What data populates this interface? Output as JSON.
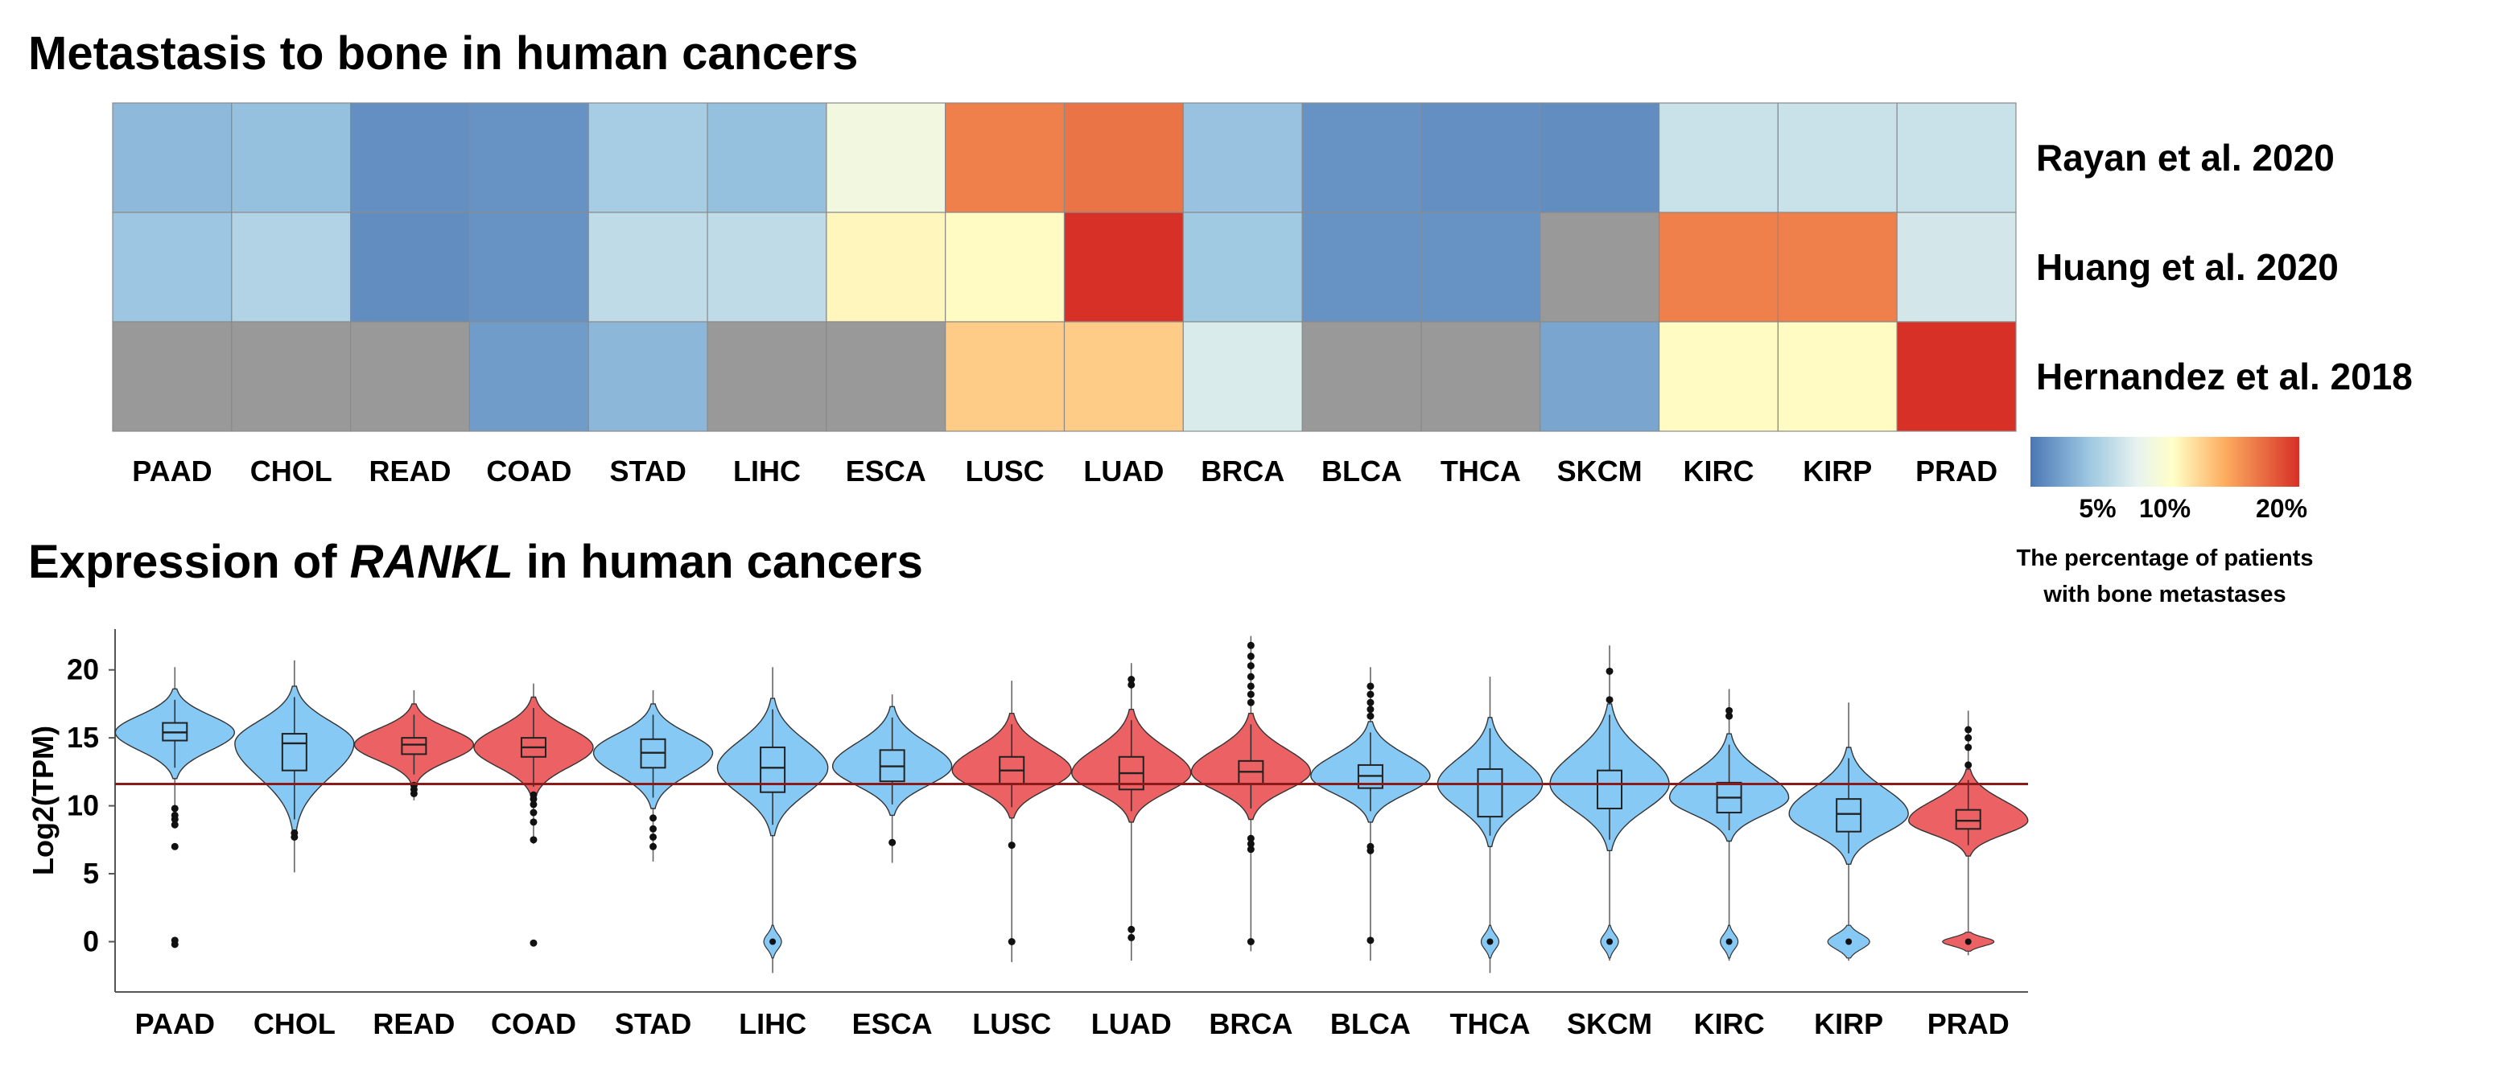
{
  "colors": {
    "low": "#4a77b5",
    "mid": "#ffffc8",
    "high": "#d73027",
    "na": "#999999",
    "violin_blue": "#87c9f5",
    "violin_red": "#ec6163",
    "ref_line": "#8b1a1a"
  },
  "chart_data": [
    {
      "type": "heatmap",
      "title": "Metastasis to bone in human cancers",
      "categories": [
        "PAAD",
        "CHOL",
        "READ",
        "COAD",
        "STAD",
        "LIHC",
        "ESCA",
        "LUSC",
        "LUAD",
        "BRCA",
        "BLCA",
        "THCA",
        "SKCM",
        "KIRC",
        "KIRP",
        "PRAD"
      ],
      "rows": [
        "Rayan et al. 2020",
        "Huang et al. 2020",
        "Hernandez et al. 2018"
      ],
      "values": [
        [
          3.6,
          4.0,
          1.3,
          1.5,
          4.8,
          4.0,
          9.0,
          16.5,
          17.0,
          4.1,
          1.5,
          1.3,
          1.2,
          6.5,
          6.5,
          6.5
        ],
        [
          4.3,
          5.3,
          1.2,
          1.5,
          6.0,
          6.0,
          11.0,
          10.8,
          20.0,
          4.5,
          1.5,
          1.5,
          null,
          16.5,
          16.5,
          7.0
        ],
        [
          null,
          null,
          null,
          2.0,
          3.5,
          null,
          null,
          13.0,
          13.0,
          7.3,
          null,
          null,
          2.5,
          10.8,
          10.8,
          20.0
        ]
      ],
      "colorbar": {
        "min": 0,
        "max": 20,
        "ticks": [
          5,
          10,
          20
        ],
        "tick_labels": [
          "5%",
          "10%",
          "20%"
        ],
        "label_line1": "The percentage of patients",
        "label_line2": "with bone metastases"
      }
    },
    {
      "type": "violin",
      "title_prefix": "Expression of ",
      "title_gene": "RANKL",
      "title_suffix": " in human cancers",
      "ylabel": "Log2(TPM)",
      "ylim": [
        -3.7,
        23
      ],
      "yticks": [
        0,
        5,
        10,
        15,
        20
      ],
      "reference_line": 11.6,
      "categories": [
        "PAAD",
        "CHOL",
        "READ",
        "COAD",
        "STAD",
        "LIHC",
        "ESCA",
        "LUSC",
        "LUAD",
        "BRCA",
        "BLCA",
        "THCA",
        "SKCM",
        "KIRC",
        "KIRP",
        "PRAD"
      ],
      "series": [
        {
          "name": "PAAD",
          "color": "blue",
          "median": 15.4,
          "q1": 14.8,
          "q3": 16.1,
          "whisker_low": 12.8,
          "whisker_high": 17.8,
          "tail_low": 9.0,
          "tail_high": 20.2,
          "has_zero_group": false,
          "outliers": [
            -0.2,
            0.1,
            7.0,
            8.6,
            9.0,
            9.3,
            9.8
          ]
        },
        {
          "name": "CHOL",
          "color": "blue",
          "median": 14.6,
          "q1": 12.6,
          "q3": 15.3,
          "whisker_low": 9.0,
          "whisker_high": 18.0,
          "tail_low": 5.1,
          "tail_high": 20.7,
          "has_zero_group": false,
          "outliers": [
            7.7,
            8.0
          ]
        },
        {
          "name": "READ",
          "color": "red",
          "median": 14.5,
          "q1": 13.8,
          "q3": 15.0,
          "whisker_low": 12.3,
          "whisker_high": 16.7,
          "tail_low": 10.4,
          "tail_high": 18.5,
          "has_zero_group": false,
          "outliers": [
            10.9,
            11.2,
            11.5
          ]
        },
        {
          "name": "COAD",
          "color": "red",
          "median": 14.3,
          "q1": 13.6,
          "q3": 15.0,
          "whisker_low": 11.4,
          "whisker_high": 17.2,
          "tail_low": 7.2,
          "tail_high": 19.0,
          "has_zero_group": false,
          "outliers": [
            -0.1,
            7.5,
            8.8,
            9.5,
            10.1,
            10.5,
            10.8
          ]
        },
        {
          "name": "STAD",
          "color": "blue",
          "median": 13.9,
          "q1": 12.8,
          "q3": 14.9,
          "whisker_low": 10.6,
          "whisker_high": 16.7,
          "tail_low": 5.9,
          "tail_high": 18.5,
          "has_zero_group": false,
          "outliers": [
            7.0,
            7.7,
            8.3,
            9.1
          ]
        },
        {
          "name": "LIHC",
          "color": "blue",
          "median": 12.8,
          "q1": 11.0,
          "q3": 14.3,
          "whisker_low": 8.6,
          "whisker_high": 17.1,
          "tail_low": -2.3,
          "tail_high": 20.2,
          "has_zero_group": true,
          "outliers": []
        },
        {
          "name": "ESCA",
          "color": "blue",
          "median": 12.9,
          "q1": 11.8,
          "q3": 14.1,
          "whisker_low": 10.1,
          "whisker_high": 16.5,
          "tail_low": 5.8,
          "tail_high": 18.2,
          "has_zero_group": false,
          "outliers": [
            7.3
          ]
        },
        {
          "name": "LUSC",
          "color": "red",
          "median": 12.6,
          "q1": 11.6,
          "q3": 13.6,
          "whisker_low": 9.9,
          "whisker_high": 16.0,
          "tail_low": -1.5,
          "tail_high": 19.2,
          "has_zero_group": false,
          "outliers": [
            7.1,
            0.0
          ]
        },
        {
          "name": "LUAD",
          "color": "red",
          "median": 12.4,
          "q1": 11.2,
          "q3": 13.6,
          "whisker_low": 9.6,
          "whisker_high": 16.3,
          "tail_low": -1.4,
          "tail_high": 20.5,
          "has_zero_group": false,
          "outliers": [
            0.3,
            0.9,
            18.9,
            19.3
          ]
        },
        {
          "name": "BRCA",
          "color": "red",
          "median": 12.5,
          "q1": 11.6,
          "q3": 13.3,
          "whisker_low": 9.8,
          "whisker_high": 16.0,
          "tail_low": -0.7,
          "tail_high": 22.5,
          "has_zero_group": false,
          "outliers": [
            0.0,
            6.8,
            7.2,
            7.6,
            17.6,
            18.2,
            18.8,
            19.5,
            20.3,
            21.0,
            21.8
          ]
        },
        {
          "name": "BLCA",
          "color": "blue",
          "median": 12.2,
          "q1": 11.3,
          "q3": 13.0,
          "whisker_low": 9.6,
          "whisker_high": 15.4,
          "tail_low": -1.4,
          "tail_high": 20.2,
          "has_zero_group": false,
          "outliers": [
            0.1,
            6.7,
            7.0,
            16.6,
            17.1,
            17.6,
            18.2,
            18.8
          ]
        },
        {
          "name": "THCA",
          "color": "blue",
          "median": 11.6,
          "q1": 9.2,
          "q3": 12.7,
          "whisker_low": 7.8,
          "whisker_high": 15.7,
          "tail_low": -2.3,
          "tail_high": 19.5,
          "has_zero_group": true,
          "outliers": []
        },
        {
          "name": "SKCM",
          "color": "blue",
          "median": 11.6,
          "q1": 9.8,
          "q3": 12.6,
          "whisker_low": 7.5,
          "whisker_high": 16.7,
          "tail_low": -1.4,
          "tail_high": 21.8,
          "has_zero_group": true,
          "outliers": [
            17.8,
            19.9
          ]
        },
        {
          "name": "KIRC",
          "color": "blue",
          "median": 10.6,
          "q1": 9.5,
          "q3": 11.7,
          "whisker_low": 8.2,
          "whisker_high": 14.5,
          "tail_low": -1.4,
          "tail_high": 18.6,
          "has_zero_group": true,
          "outliers": [
            16.6,
            17.0
          ]
        },
        {
          "name": "KIRP",
          "color": "blue",
          "median": 9.4,
          "q1": 8.1,
          "q3": 10.5,
          "whisker_low": 6.5,
          "whisker_high": 13.5,
          "tail_low": -1.4,
          "tail_high": 17.6,
          "has_zero_group": true,
          "outliers": []
        },
        {
          "name": "PRAD",
          "color": "red",
          "median": 8.9,
          "q1": 8.3,
          "q3": 9.7,
          "whisker_low": 7.1,
          "whisker_high": 11.9,
          "tail_low": -1.0,
          "tail_high": 17.0,
          "has_zero_group": true,
          "outliers": [
            13.0,
            14.3,
            15.0,
            15.6
          ]
        }
      ]
    }
  ]
}
